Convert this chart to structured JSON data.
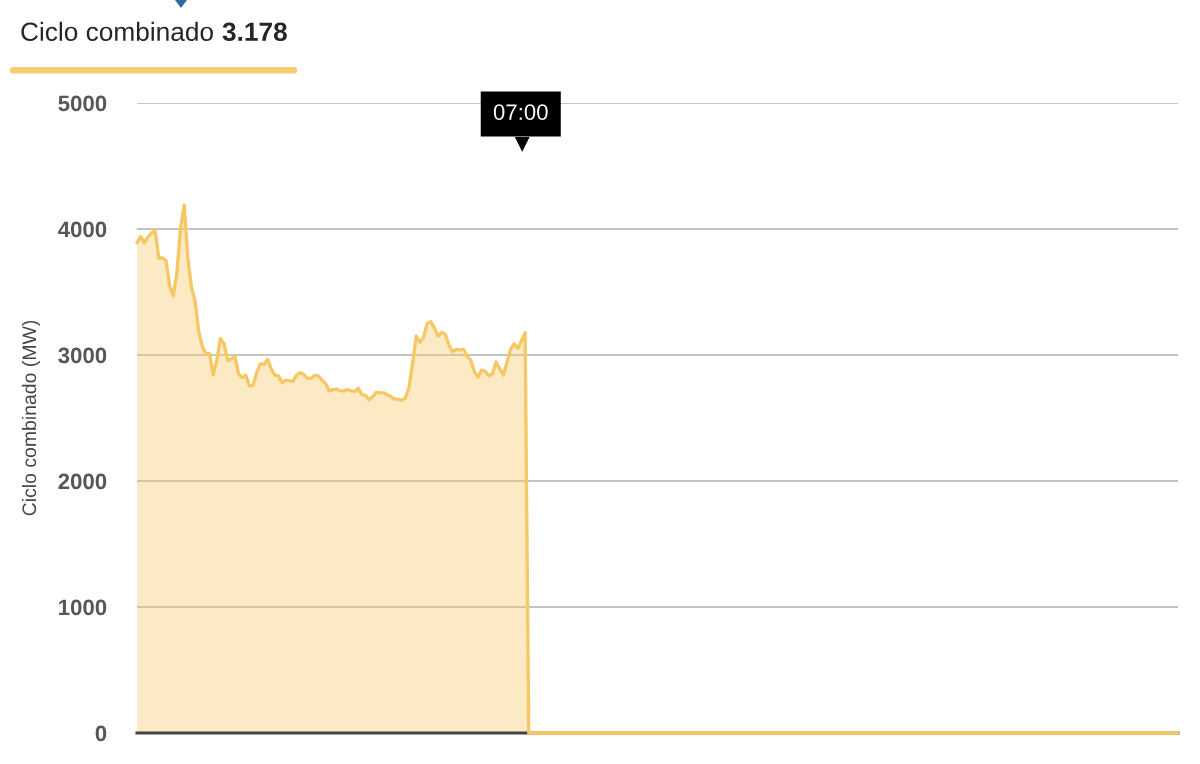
{
  "chart_data": {
    "type": "area",
    "title": "Ciclo combinado",
    "subtitle": "3.178",
    "ylabel": "Ciclo combinado (MW)",
    "categories": [
      null,
      null,
      null,
      null,
      null,
      null,
      null,
      null,
      null,
      null,
      null,
      null,
      null,
      null,
      null,
      null,
      null,
      null,
      null,
      null,
      null,
      null,
      null,
      null,
      null,
      null,
      null,
      null,
      null,
      null,
      null,
      null,
      null,
      null,
      null,
      null,
      null,
      null,
      null,
      null,
      null,
      null,
      null,
      null,
      null,
      null,
      null,
      null,
      null,
      null,
      null,
      null,
      null,
      null,
      null,
      null,
      null,
      null,
      null,
      null,
      null,
      null,
      null,
      null,
      null,
      null,
      null,
      null,
      null,
      null,
      null,
      null,
      null,
      null,
      null,
      null,
      null,
      null,
      null,
      null,
      null,
      null,
      null,
      null,
      null,
      null,
      null,
      null,
      null,
      null,
      null,
      null,
      null,
      null,
      null,
      null,
      null,
      null,
      null,
      null,
      null,
      null,
      null,
      null,
      null,
      null,
      null,
      null,
      null,
      null,
      null,
      null,
      null,
      null,
      null,
      null,
      null,
      null,
      null,
      null,
      null,
      null,
      null,
      null,
      null,
      null,
      null,
      null,
      null,
      null,
      null,
      null,
      null,
      null,
      null,
      null,
      null,
      null,
      null,
      null,
      null,
      null,
      null,
      null,
      null,
      null,
      null,
      null,
      null,
      null,
      null,
      null,
      null,
      null,
      null,
      null,
      null,
      null,
      null,
      null,
      null,
      null,
      null,
      null,
      null,
      null,
      null,
      null,
      null,
      null,
      null,
      null,
      null,
      null,
      null,
      null,
      null,
      null,
      null,
      null,
      null,
      null,
      null,
      null,
      null,
      null,
      null,
      null,
      null,
      null,
      null,
      null,
      null,
      null,
      null,
      null,
      null,
      null,
      null,
      null,
      null,
      null,
      null,
      null,
      null,
      null,
      null,
      null,
      null,
      null,
      null,
      null,
      null,
      null,
      null,
      null,
      null,
      null,
      null,
      null,
      null,
      null,
      null,
      null,
      null,
      null,
      null,
      null,
      null,
      null,
      null,
      null,
      null,
      null,
      null,
      null,
      null,
      null,
      null,
      null,
      null,
      null,
      null,
      null,
      null,
      null,
      null,
      null,
      null,
      null,
      null,
      null,
      null,
      null,
      null,
      null,
      null,
      null,
      null,
      null,
      null,
      null,
      null,
      null,
      null,
      null,
      null,
      null,
      null,
      null,
      null,
      null,
      null,
      null,
      null,
      null,
      null,
      null,
      null,
      null,
      null,
      null,
      null,
      null,
      null,
      null,
      null,
      null
    ],
    "series": [
      {
        "color": "#f6c865",
        "values": [
          3890,
          3940,
          3890,
          3935,
          3970,
          3990,
          3770,
          3770,
          3750,
          3550,
          3470,
          3650,
          4000,
          4190,
          3770,
          3540,
          3430,
          3190,
          3070,
          3010,
          3010,
          2840,
          2960,
          3130,
          3090,
          2955,
          2970,
          2990,
          2850,
          2820,
          2840,
          2755,
          2760,
          2860,
          2930,
          2925,
          2965,
          2890,
          2840,
          2835,
          2780,
          2800,
          2795,
          2790,
          2840,
          2860,
          2845,
          2815,
          2815,
          2840,
          2835,
          2800,
          2775,
          2715,
          2725,
          2730,
          2715,
          2715,
          2725,
          2715,
          2710,
          2735,
          2685,
          2680,
          2645,
          2670,
          2705,
          2700,
          2700,
          2685,
          2670,
          2650,
          2650,
          2640,
          2660,
          2740,
          2940,
          3150,
          3100,
          3140,
          3250,
          3265,
          3215,
          3150,
          3180,
          3165,
          3080,
          3025,
          3045,
          3040,
          3045,
          2990,
          2960,
          2870,
          2825,
          2880,
          2870,
          2835,
          2850,
          2945,
          2890,
          2840,
          2940,
          3045,
          3090,
          3050,
          3115,
          3178,
          0,
          0,
          0,
          0,
          0,
          0,
          0,
          0,
          0,
          0,
          0,
          0,
          0,
          0,
          0,
          0,
          0,
          0,
          0,
          0,
          0,
          0,
          0,
          0,
          0,
          0,
          0,
          0,
          0,
          0,
          0,
          0,
          0,
          0,
          0,
          0,
          0,
          0,
          0,
          0,
          0,
          0,
          0,
          0,
          0,
          0,
          0,
          0,
          0,
          0,
          0,
          0,
          0,
          0,
          0,
          0,
          0,
          0,
          0,
          0,
          0,
          0,
          0,
          0,
          0,
          0,
          0,
          0,
          0,
          0,
          0,
          0,
          0,
          0,
          0,
          0,
          0,
          0,
          0,
          0,
          0,
          0,
          0,
          0,
          0,
          0,
          0,
          0,
          0,
          0,
          0,
          0,
          0,
          0,
          0,
          0,
          0,
          0,
          0,
          0,
          0,
          0,
          0,
          0,
          0,
          0,
          0,
          0,
          0,
          0,
          0,
          0,
          0,
          0,
          0,
          0,
          0,
          0,
          0,
          0,
          0,
          0,
          0,
          0,
          0,
          0,
          0,
          0,
          0,
          0,
          0,
          0,
          0,
          0,
          0,
          0,
          0,
          0,
          0,
          0,
          0,
          0,
          0,
          0,
          0,
          0,
          0,
          0,
          0,
          0,
          0,
          0,
          0,
          0,
          0,
          0,
          0,
          0,
          0,
          0,
          0,
          0,
          0,
          0,
          0,
          0,
          0,
          0,
          0,
          0,
          0,
          0,
          0,
          0,
          0,
          0,
          0,
          0,
          0,
          0
        ]
      }
    ],
    "ylim": [
      0,
      5000
    ],
    "yticks": [
      0,
      1000,
      2000,
      3000,
      4000,
      5000
    ],
    "grid": "y",
    "annotations": [
      "07:00"
    ]
  }
}
